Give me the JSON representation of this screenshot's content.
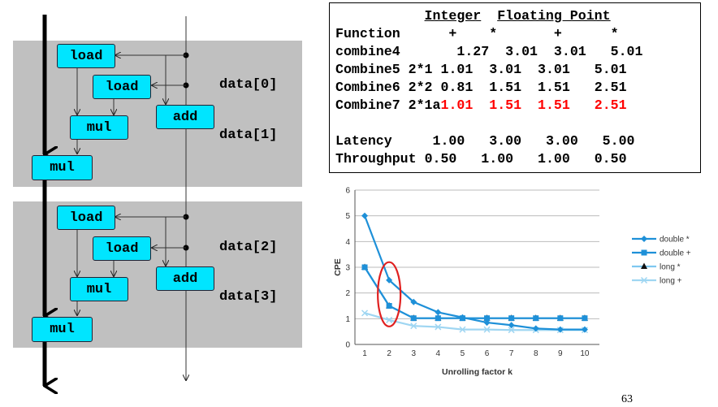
{
  "diagram": {
    "ops": {
      "load": "load",
      "mul": "mul",
      "add": "add"
    },
    "data_labels": [
      "data[0]",
      "data[1]",
      "data[2]",
      "data[3]"
    ]
  },
  "table": {
    "header1": {
      "integer": "Integer",
      "floating": "Floating Point"
    },
    "header2": {
      "function": "Function",
      "int_add": "+",
      "int_mul": "*",
      "fp_add": "+",
      "fp_mul": "*"
    },
    "rows": [
      {
        "name": "combine4",
        "unroll": "",
        "values": [
          "1.27",
          "3.01",
          "3.01",
          "5.01"
        ],
        "highlight": false
      },
      {
        "name": "Combine5",
        "unroll": "2*1",
        "values": [
          "1.01",
          "3.01",
          "3.01",
          "5.01"
        ],
        "highlight": false
      },
      {
        "name": "Combine6",
        "unroll": "2*2",
        "values": [
          "0.81",
          "1.51",
          "1.51",
          "2.51"
        ],
        "highlight": false
      },
      {
        "name": "Combine7",
        "unroll": "2*1a",
        "values": [
          "1.01",
          "1.51",
          "1.51",
          "2.51"
        ],
        "highlight": true
      }
    ],
    "latency": {
      "label": "Latency",
      "values": [
        "1.00",
        "3.00",
        "3.00",
        "5.00"
      ]
    },
    "throughput": {
      "label": "Throughput",
      "values": [
        "0.50",
        "1.00",
        "1.00",
        "0.50"
      ]
    }
  },
  "chart_data": {
    "type": "line",
    "xlabel": "Unrolling factor k",
    "ylabel": "CPE",
    "x": [
      1,
      2,
      3,
      4,
      5,
      6,
      7,
      8,
      9,
      10
    ],
    "xlim": [
      0.6,
      10.6
    ],
    "ylim": [
      0,
      6
    ],
    "yticks": [
      0,
      1,
      2,
      3,
      4,
      5,
      6
    ],
    "grid": true,
    "legend_position": "right",
    "series": [
      {
        "name": "double *",
        "marker": "diamond",
        "color": "#1e90d8",
        "values": [
          5.0,
          2.5,
          1.65,
          1.25,
          1.05,
          0.85,
          0.75,
          0.62,
          0.58,
          0.58
        ]
      },
      {
        "name": "double +",
        "marker": "square",
        "color": "#1e90d8",
        "values": [
          3.0,
          1.5,
          1.02,
          1.02,
          1.02,
          1.02,
          1.02,
          1.02,
          1.02,
          1.02
        ]
      },
      {
        "name": "long *",
        "marker": "triangle",
        "color": "#7fc8f0",
        "values": [
          3.0,
          1.5,
          1.02,
          1.02,
          1.02,
          1.02,
          1.02,
          1.02,
          1.02,
          1.02
        ]
      },
      {
        "name": "long +",
        "marker": "x",
        "color": "#9fd6f2",
        "values": [
          1.22,
          0.95,
          0.72,
          0.68,
          0.58,
          0.58,
          0.56,
          0.56,
          0.56,
          0.56
        ]
      }
    ],
    "annotation": {
      "type": "ellipse",
      "x": 2,
      "color": "#e02020"
    }
  },
  "page_number": "63"
}
